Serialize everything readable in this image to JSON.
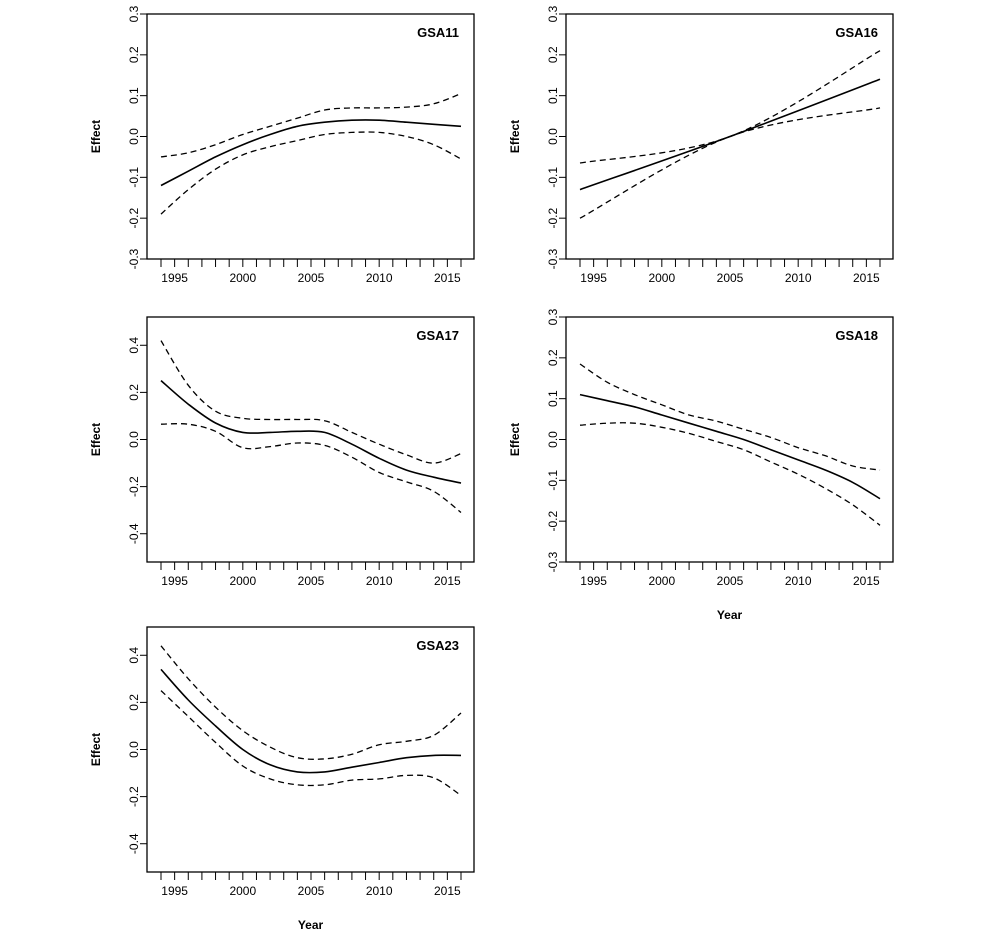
{
  "chart_data": [
    {
      "type": "line",
      "title": "GSA11",
      "xlabel": "",
      "ylabel": "Effect",
      "xlim": [
        1994,
        2016
      ],
      "ylim": [
        -0.3,
        0.3
      ],
      "x_ticks": [
        1995,
        2000,
        2005,
        2010,
        2015
      ],
      "y_ticks": [
        -0.3,
        -0.2,
        -0.1,
        0.0,
        0.1,
        0.2,
        0.3
      ],
      "y_tick_labels": [
        "-0.3",
        "-0.2",
        "-0.1",
        "0.0",
        "0.1",
        "0.2",
        "0.3"
      ],
      "x": [
        1994,
        1996,
        1998,
        2000,
        2002,
        2004,
        2006,
        2008,
        2010,
        2012,
        2014,
        2016
      ],
      "series": [
        {
          "role": "estimate",
          "style": "solid",
          "values": [
            -0.12,
            -0.085,
            -0.05,
            -0.02,
            0.005,
            0.025,
            0.035,
            0.04,
            0.04,
            0.035,
            0.03,
            0.025
          ]
        },
        {
          "role": "upper",
          "style": "dashed",
          "values": [
            -0.05,
            -0.04,
            -0.02,
            0.005,
            0.025,
            0.045,
            0.065,
            0.07,
            0.07,
            0.072,
            0.08,
            0.105
          ]
        },
        {
          "role": "lower",
          "style": "dashed",
          "values": [
            -0.19,
            -0.13,
            -0.08,
            -0.045,
            -0.025,
            -0.01,
            0.005,
            0.01,
            0.01,
            0.0,
            -0.02,
            -0.055
          ]
        }
      ]
    },
    {
      "type": "line",
      "title": "GSA16",
      "xlabel": "",
      "ylabel": "Effect",
      "xlim": [
        1994,
        2016
      ],
      "ylim": [
        -0.3,
        0.3
      ],
      "x_ticks": [
        1995,
        2000,
        2005,
        2010,
        2015
      ],
      "y_ticks": [
        -0.3,
        -0.2,
        -0.1,
        0.0,
        0.1,
        0.2,
        0.3
      ],
      "y_tick_labels": [
        "-0.3",
        "-0.2",
        "-0.1",
        "0.0",
        "0.1",
        "0.2",
        "0.3"
      ],
      "x": [
        1994,
        2005,
        2016
      ],
      "series": [
        {
          "role": "estimate",
          "style": "solid",
          "values": [
            -0.13,
            0.0,
            0.14
          ]
        },
        {
          "role": "upper",
          "style": "dashed",
          "values": [
            -0.065,
            0.0,
            0.21
          ]
        },
        {
          "role": "lower",
          "style": "dashed",
          "values": [
            -0.2,
            0.0,
            0.07
          ]
        }
      ]
    },
    {
      "type": "line",
      "title": "GSA17",
      "xlabel": "",
      "ylabel": "Effect",
      "xlim": [
        1994,
        2016
      ],
      "ylim": [
        -0.52,
        0.52
      ],
      "x_ticks": [
        1995,
        2000,
        2005,
        2010,
        2015
      ],
      "y_ticks": [
        -0.4,
        -0.2,
        0.0,
        0.2,
        0.4
      ],
      "y_tick_labels": [
        "-0.4",
        "-0.2",
        "0.0",
        "0.2",
        "0.4"
      ],
      "x": [
        1994,
        1996,
        1998,
        2000,
        2002,
        2004,
        2006,
        2008,
        2010,
        2012,
        2014,
        2016
      ],
      "series": [
        {
          "role": "estimate",
          "style": "solid",
          "values": [
            0.25,
            0.15,
            0.07,
            0.03,
            0.03,
            0.035,
            0.03,
            -0.02,
            -0.08,
            -0.13,
            -0.16,
            -0.185
          ]
        },
        {
          "role": "upper",
          "style": "dashed",
          "values": [
            0.42,
            0.23,
            0.12,
            0.09,
            0.085,
            0.085,
            0.08,
            0.03,
            -0.02,
            -0.065,
            -0.1,
            -0.06
          ]
        },
        {
          "role": "lower",
          "style": "dashed",
          "values": [
            0.065,
            0.065,
            0.035,
            -0.035,
            -0.03,
            -0.015,
            -0.025,
            -0.075,
            -0.14,
            -0.18,
            -0.22,
            -0.31
          ]
        }
      ]
    },
    {
      "type": "line",
      "title": "GSA18",
      "xlabel": "Year",
      "ylabel": "Effect",
      "xlim": [
        1994,
        2016
      ],
      "ylim": [
        -0.3,
        0.3
      ],
      "x_ticks": [
        1995,
        2000,
        2005,
        2010,
        2015
      ],
      "y_ticks": [
        -0.3,
        -0.2,
        -0.1,
        0.0,
        0.1,
        0.2,
        0.3
      ],
      "y_tick_labels": [
        "-0.3",
        "-0.2",
        "-0.1",
        "0.0",
        "0.1",
        "0.2",
        "0.3"
      ],
      "x": [
        1994,
        1996,
        1998,
        2000,
        2002,
        2004,
        2006,
        2008,
        2010,
        2012,
        2014,
        2016
      ],
      "series": [
        {
          "role": "estimate",
          "style": "solid",
          "values": [
            0.11,
            0.095,
            0.08,
            0.06,
            0.04,
            0.02,
            0.0,
            -0.025,
            -0.05,
            -0.075,
            -0.105,
            -0.145
          ]
        },
        {
          "role": "upper",
          "style": "dashed",
          "values": [
            0.185,
            0.14,
            0.11,
            0.085,
            0.06,
            0.045,
            0.025,
            0.005,
            -0.02,
            -0.04,
            -0.065,
            -0.075
          ]
        },
        {
          "role": "lower",
          "style": "dashed",
          "values": [
            0.035,
            0.04,
            0.04,
            0.03,
            0.015,
            -0.005,
            -0.025,
            -0.055,
            -0.085,
            -0.12,
            -0.16,
            -0.21
          ]
        }
      ]
    },
    {
      "type": "line",
      "title": "GSA23",
      "xlabel": "Year",
      "ylabel": "Effect",
      "xlim": [
        1994,
        2016
      ],
      "ylim": [
        -0.52,
        0.52
      ],
      "x_ticks": [
        1995,
        2000,
        2005,
        2010,
        2015
      ],
      "y_ticks": [
        -0.4,
        -0.2,
        0.0,
        0.2,
        0.4
      ],
      "y_tick_labels": [
        "-0.4",
        "-0.2",
        "0.0",
        "0.2",
        "0.4"
      ],
      "x": [
        1994,
        1996,
        1998,
        2000,
        2002,
        2004,
        2006,
        2008,
        2010,
        2012,
        2014,
        2016
      ],
      "series": [
        {
          "role": "estimate",
          "style": "solid",
          "values": [
            0.34,
            0.21,
            0.1,
            0.0,
            -0.065,
            -0.095,
            -0.095,
            -0.075,
            -0.055,
            -0.035,
            -0.025,
            -0.025
          ]
        },
        {
          "role": "upper",
          "style": "dashed",
          "values": [
            0.44,
            0.3,
            0.18,
            0.08,
            0.01,
            -0.035,
            -0.04,
            -0.02,
            0.02,
            0.035,
            0.06,
            0.155
          ]
        },
        {
          "role": "lower",
          "style": "dashed",
          "values": [
            0.25,
            0.14,
            0.03,
            -0.07,
            -0.125,
            -0.15,
            -0.15,
            -0.13,
            -0.125,
            -0.11,
            -0.12,
            -0.195
          ]
        }
      ]
    }
  ]
}
